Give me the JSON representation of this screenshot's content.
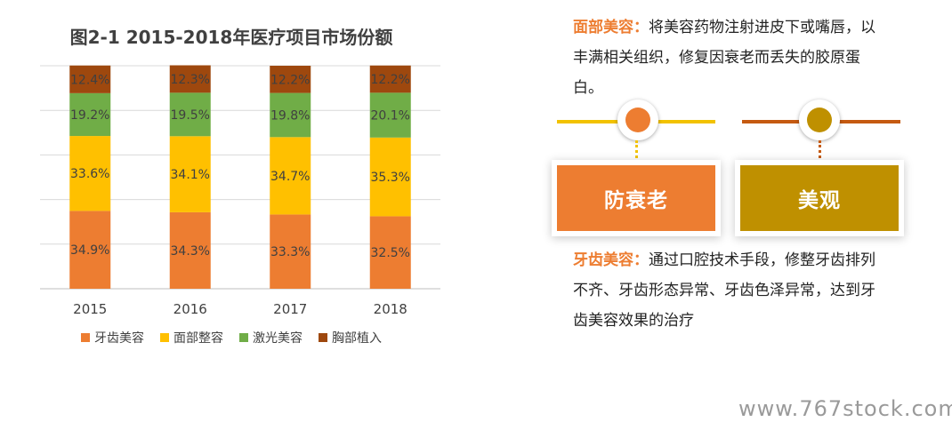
{
  "chart_data": {
    "type": "bar",
    "stacked": true,
    "title": "图2-1 2015-2018年医疗项目市场份额",
    "categories": [
      "2015",
      "2016",
      "2017",
      "2018"
    ],
    "series": [
      {
        "name": "牙齿美容",
        "color": "#ED7D31",
        "values": [
          34.9,
          34.3,
          33.3,
          32.5
        ],
        "labels": [
          "34.9%",
          "34.3%",
          "33.3%",
          "32.5%"
        ]
      },
      {
        "name": "面部整容",
        "color": "#FFC000",
        "values": [
          33.6,
          34.1,
          34.7,
          35.3
        ],
        "labels": [
          "33.6%",
          "34.1%",
          "34.7%",
          "35.3%"
        ]
      },
      {
        "name": "激光美容",
        "color": "#70AD47",
        "values": [
          19.2,
          19.5,
          19.8,
          20.1
        ],
        "labels": [
          "19.2%",
          "19.5%",
          "19.8%",
          "20.1%"
        ]
      },
      {
        "name": "胸部植入",
        "color": "#9E480E",
        "values": [
          12.4,
          12.3,
          12.2,
          12.2
        ],
        "labels": [
          "12.4%",
          "12.3%",
          "12.2%",
          "12.2%"
        ]
      }
    ],
    "ylim": [
      0,
      100
    ],
    "grid": true,
    "legend_position": "bottom"
  },
  "diagram": {
    "top_label": "面部美容：",
    "top_text": "将美容药物注射进皮下或嘴唇，以丰满相关组织，修复因衰老而丢失的胶原蛋白。",
    "bottom_label": "牙齿美容：",
    "bottom_text": "通过口腔技术手段，修整牙齿排列不齐、牙齿形态异常、牙齿色泽异常，达到牙齿美容效果的治疗",
    "card_left": "防衰老",
    "card_right": "美观",
    "colors": {
      "left": "#ED7D31",
      "left_line": "#F2C200",
      "right": "#BF9000",
      "right_line": "#C55A11"
    }
  },
  "watermark": "www.767stock.com"
}
